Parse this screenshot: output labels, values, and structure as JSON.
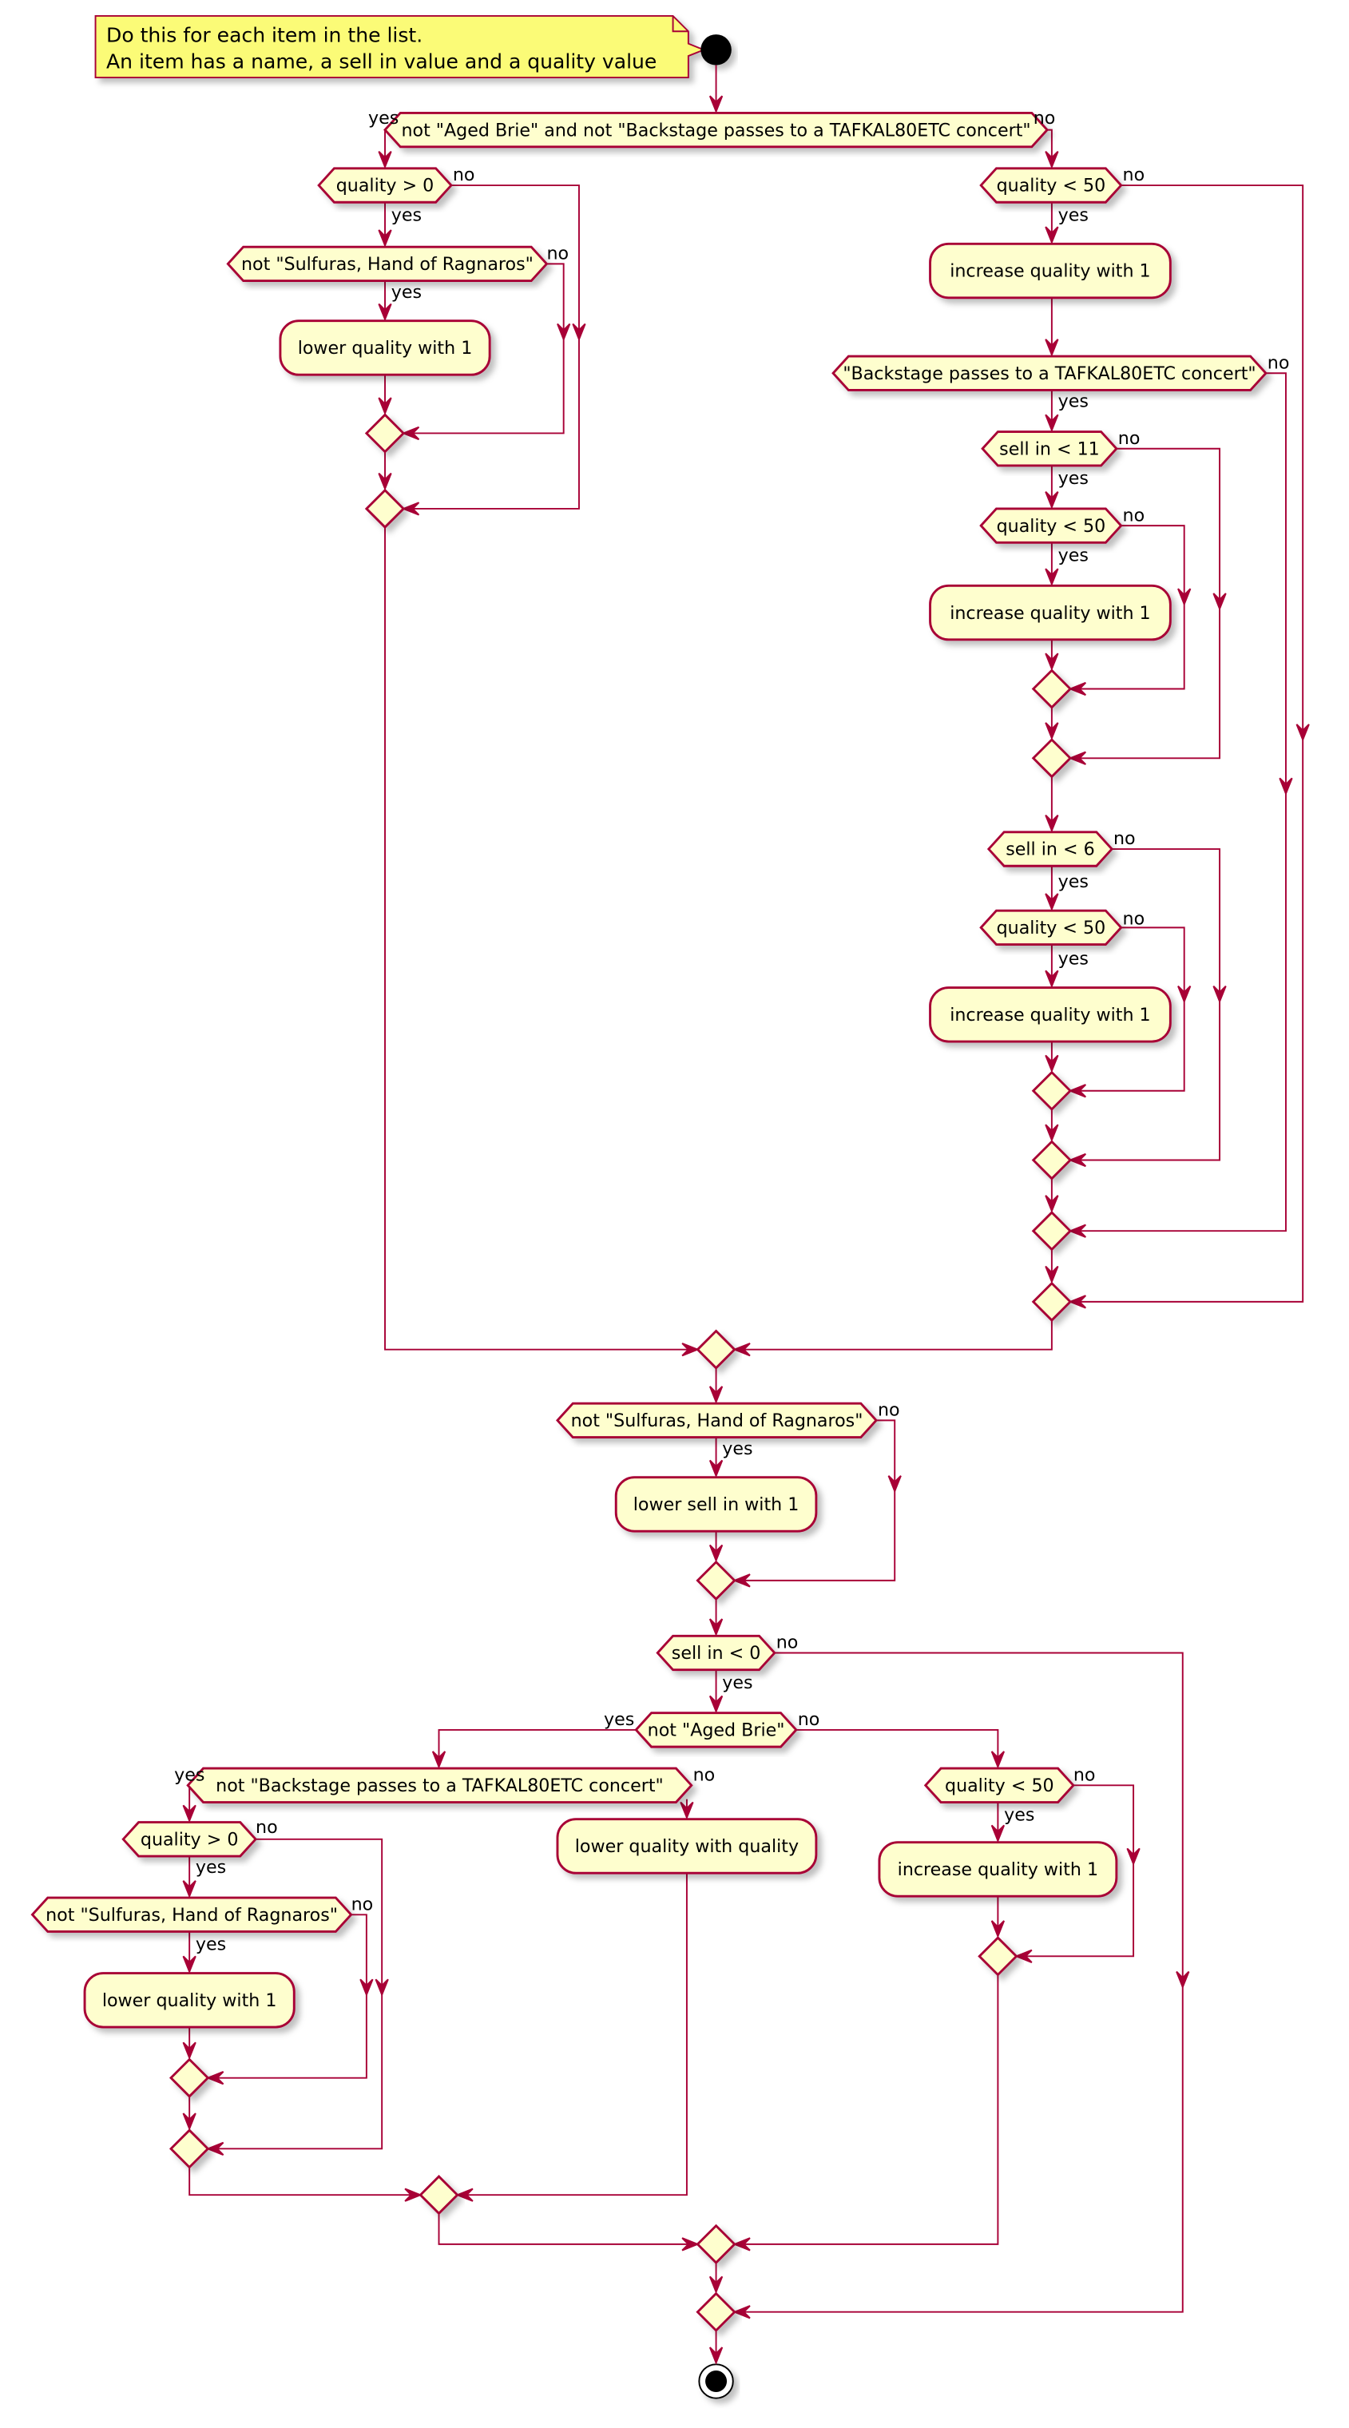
{
  "colors": {
    "border": "#A80036",
    "fill": "#FEFECE",
    "note_fill": "#FBFB77"
  },
  "note": {
    "line1": "Do this for each item in the list.",
    "line2": "An item has a name, a sell in value and a quality value"
  },
  "branch": {
    "yes": "yes",
    "no": "no"
  },
  "decisions": {
    "d1": "not \"Aged Brie\" and not \"Backstage passes to a TAFKAL80ETC concert\"",
    "d2": "quality > 0",
    "d3": "not \"Sulfuras, Hand of Ragnaros\"",
    "d4": "quality < 50",
    "d5": "\"Backstage passes to a TAFKAL80ETC concert\"",
    "d6": "sell in < 11",
    "d7": "quality < 50",
    "d8": "sell in < 6",
    "d9": "quality < 50",
    "d10": "not \"Sulfuras, Hand of Ragnaros\"",
    "d11": "sell in < 0",
    "d12": "not \"Aged Brie\"",
    "d13": "not \"Backstage passes to a TAFKAL80ETC concert\"",
    "d14": "quality > 0",
    "d15": "not \"Sulfuras, Hand of Ragnaros\"",
    "d16": "quality < 50"
  },
  "actions": {
    "a1": "lower quality with 1",
    "a2": "increase quality with 1",
    "a3": "increase quality with 1",
    "a4": "increase quality with 1",
    "a5": "lower sell in with 1",
    "a6": "lower quality with quality",
    "a7": "lower quality with 1",
    "a8": "increase quality with 1"
  }
}
